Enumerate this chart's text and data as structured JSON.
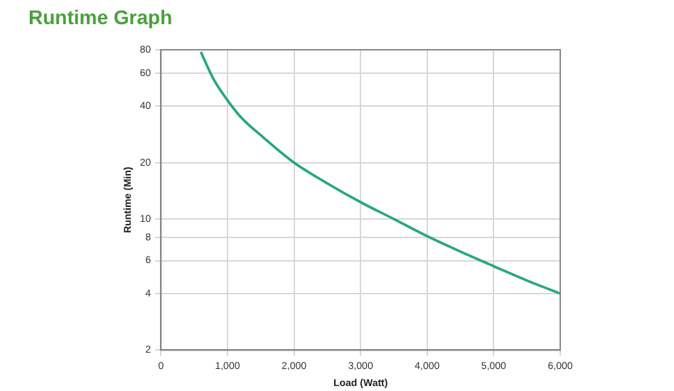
{
  "chart_data": {
    "type": "line",
    "title": "Runtime Graph",
    "xlabel": "Load (Watt)",
    "ylabel": "Runtime (Min)",
    "x": [
      600,
      700,
      800,
      1000,
      1200,
      1500,
      2000,
      2500,
      3000,
      3500,
      4000,
      4500,
      5000,
      5500,
      6000
    ],
    "series": [
      {
        "color": "#2aa876",
        "values": [
          78,
          65,
          55,
          43,
          35,
          28,
          20,
          15.5,
          12.3,
          10,
          8.1,
          6.7,
          5.6,
          4.7,
          4.0
        ]
      }
    ],
    "xlim": [
      0,
      6000
    ],
    "xticks": [
      {
        "value": 0,
        "label": "0"
      },
      {
        "value": 1000,
        "label": "1,000"
      },
      {
        "value": 2000,
        "label": "2,000"
      },
      {
        "value": 3000,
        "label": "3,000"
      },
      {
        "value": 4000,
        "label": "4,000"
      },
      {
        "value": 5000,
        "label": "5,000"
      },
      {
        "value": 6000,
        "label": "6,000"
      }
    ],
    "ylim": [
      2,
      80
    ],
    "yticks": [
      2,
      4,
      6,
      8,
      10,
      20,
      40,
      60,
      80
    ],
    "log": "y",
    "grid": true,
    "legend": false,
    "marker": "none",
    "line_style": "solid"
  }
}
